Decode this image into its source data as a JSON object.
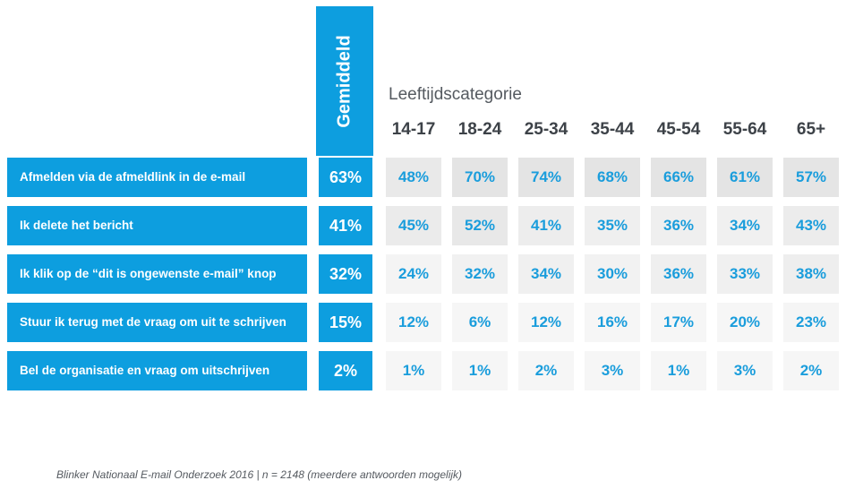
{
  "chart_data": {
    "type": "table",
    "average_label": "Gemiddeld",
    "group_title": "Leeftijdscategorie",
    "columns": [
      "14-17",
      "18-24",
      "25-34",
      "35-44",
      "45-54",
      "55-64",
      "65+"
    ],
    "rows": [
      {
        "label": "Afmelden via de afmeldlink in de e-mail",
        "average": "63%",
        "values": [
          "48%",
          "70%",
          "74%",
          "68%",
          "66%",
          "61%",
          "57%"
        ],
        "values_num": [
          48,
          70,
          74,
          68,
          66,
          61,
          57
        ]
      },
      {
        "label": "Ik delete het bericht",
        "average": "41%",
        "values": [
          "45%",
          "52%",
          "41%",
          "35%",
          "36%",
          "34%",
          "43%"
        ],
        "values_num": [
          45,
          52,
          41,
          35,
          36,
          34,
          43
        ]
      },
      {
        "label": "Ik klik op de “dit is ongewenste e-mail” knop",
        "average": "32%",
        "values": [
          "24%",
          "32%",
          "34%",
          "30%",
          "36%",
          "33%",
          "38%"
        ],
        "values_num": [
          24,
          32,
          34,
          30,
          36,
          33,
          38
        ]
      },
      {
        "label": "Stuur ik terug met de vraag om uit te schrijven",
        "average": "15%",
        "values": [
          "12%",
          "6%",
          "12%",
          "16%",
          "17%",
          "20%",
          "23%"
        ],
        "values_num": [
          12,
          6,
          12,
          16,
          17,
          20,
          23
        ]
      },
      {
        "label": "Bel de organisatie en vraag om uitschrijven",
        "average": "2%",
        "values": [
          "1%",
          "1%",
          "2%",
          "3%",
          "1%",
          "3%",
          "2%"
        ],
        "values_num": [
          1,
          1,
          2,
          3,
          1,
          3,
          2
        ]
      }
    ],
    "colors": {
      "accent": "#0d9edf",
      "value_text": "#1a9ddc",
      "cell_low": "#f6f6f6",
      "cell_high": "#e4e4e4"
    }
  },
  "footnote": "Blinker Nationaal E-mail Onderzoek 2016 | n = 2148 (meerdere antwoorden mogelijk)"
}
